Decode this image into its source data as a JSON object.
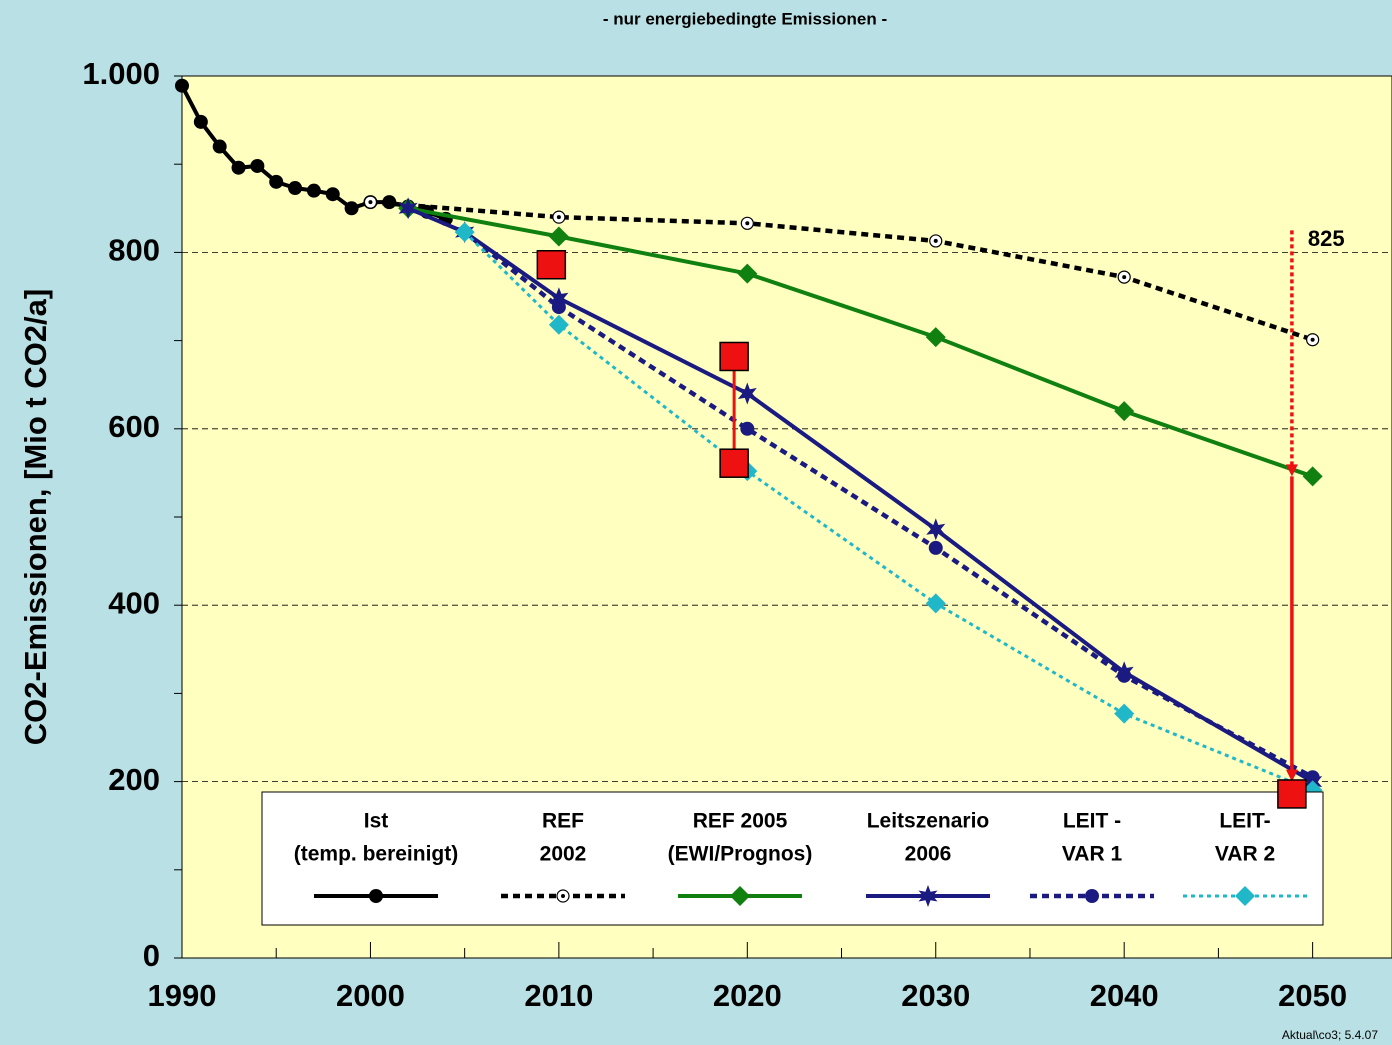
{
  "chart_data": {
    "type": "line",
    "subtitle": "- nur energiebedingte Emissionen -",
    "ylabel": "CO2-Emissionen,  [Mio t CO2/a]",
    "footer": "Aktual\\co3; 5.4.07",
    "xlim": [
      1990,
      2054
    ],
    "xticks": [
      1990,
      2000,
      2010,
      2020,
      2030,
      2040,
      2050
    ],
    "xminorticks": [
      1995,
      2005,
      2015,
      2025,
      2035,
      2045
    ],
    "ylim": [
      0,
      1000
    ],
    "yticks": [
      0,
      200,
      400,
      600,
      800,
      {
        "value": 1000,
        "label": "1.000"
      }
    ],
    "yminorticks": [
      100,
      300,
      500,
      700,
      900
    ],
    "grid": true,
    "series": [
      {
        "name": [
          "Ist",
          "(temp. bereinigt)"
        ],
        "color": "#000000",
        "style": "solid",
        "marker": "dot",
        "x": [
          1990,
          1991,
          1992,
          1993,
          1994,
          1995,
          1996,
          1997,
          1998,
          1999,
          2000,
          2001,
          2002,
          2003,
          2004
        ],
        "values": [
          989,
          948,
          920,
          896,
          898,
          880,
          873,
          870,
          866,
          850,
          857,
          857,
          852,
          846,
          838
        ]
      },
      {
        "name": [
          "REF",
          "2002"
        ],
        "color": "#000000",
        "style": "dashed",
        "marker": "open-circle",
        "x": [
          2000,
          2010,
          2020,
          2030,
          2040,
          2050
        ],
        "values": [
          857,
          840,
          833,
          813,
          772,
          701
        ]
      },
      {
        "name": [
          "REF 2005",
          "(EWI/Prognos)"
        ],
        "color": "#108010",
        "style": "solid",
        "marker": "diamond",
        "x": [
          2002,
          2010,
          2020,
          2030,
          2040,
          2050
        ],
        "values": [
          850,
          818,
          776,
          704,
          620,
          546
        ]
      },
      {
        "name": [
          "Leitszenario",
          "2006"
        ],
        "color": "#1a1a80",
        "style": "solid",
        "marker": "star",
        "x": [
          2002,
          2005,
          2010,
          2020,
          2030,
          2040,
          2050
        ],
        "values": [
          850,
          823,
          748,
          640,
          486,
          324,
          200
        ]
      },
      {
        "name": [
          "LEIT -",
          "VAR 1"
        ],
        "color": "#1a1a80",
        "style": "dashed",
        "marker": "dot",
        "x": [
          2005,
          2010,
          2020,
          2030,
          2040,
          2050
        ],
        "values": [
          823,
          738,
          600,
          465,
          320,
          205
        ]
      },
      {
        "name": [
          "LEIT-",
          "VAR 2"
        ],
        "color": "#20b8c8",
        "style": "dotted",
        "marker": "diamond",
        "x": [
          2005,
          2010,
          2020,
          2030,
          2040,
          2050
        ],
        "values": [
          823,
          718,
          552,
          402,
          277,
          190
        ]
      }
    ],
    "targets": {
      "color": "#ee1111",
      "x": [
        2009.6,
        2019.3,
        2019.3,
        2048.9
      ],
      "values": [
        786,
        682,
        561,
        186
      ]
    },
    "annotation": {
      "text": "825",
      "x": 2048.9,
      "values": [
        825,
        546,
        200
      ]
    }
  }
}
